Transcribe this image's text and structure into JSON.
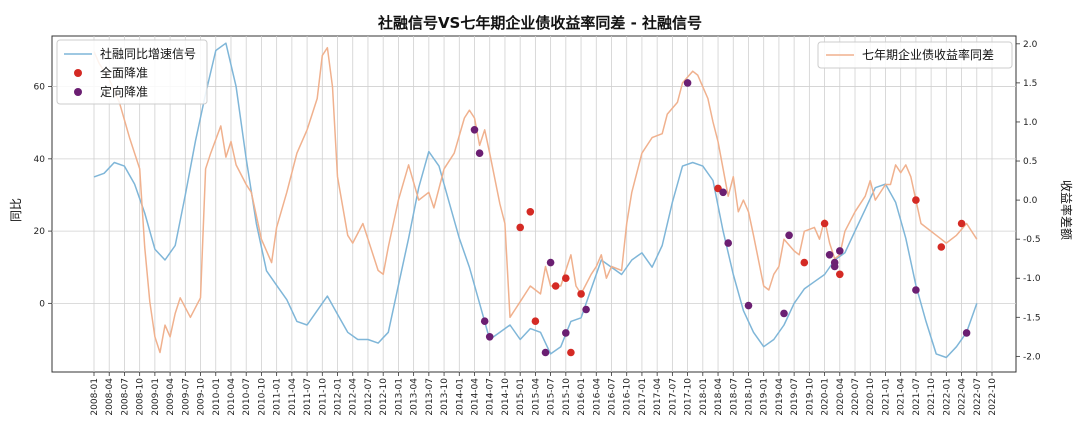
{
  "chart_data": {
    "type": "line",
    "title": "社融信号VS七年期企业债收益率同差 - 社融信号",
    "ylabel_left": "同比",
    "ylabel_right": "收益率差额",
    "ylim_left": [
      -19,
      74
    ],
    "ylim_right": [
      -2.2,
      2.1
    ],
    "yticks_left": [
      0,
      20,
      40,
      60
    ],
    "yticks_right": [
      2.0,
      1.5,
      1.0,
      0.5,
      0.0,
      -0.5,
      -1.0,
      -1.5,
      -2.0
    ],
    "x_start": "2008-01",
    "x_end": "2022-10",
    "x_ticks": [
      "2008-01",
      "2008-04",
      "2008-07",
      "2008-10",
      "2009-01",
      "2009-04",
      "2009-07",
      "2009-10",
      "2010-01",
      "2010-04",
      "2010-07",
      "2010-10",
      "2011-01",
      "2011-04",
      "2011-07",
      "2011-10",
      "2012-01",
      "2012-04",
      "2012-07",
      "2012-10",
      "2013-01",
      "2013-04",
      "2013-07",
      "2013-10",
      "2014-01",
      "2014-04",
      "2014-07",
      "2014-10",
      "2015-01",
      "2015-04",
      "2015-07",
      "2015-10",
      "2016-01",
      "2016-04",
      "2016-07",
      "2016-10",
      "2017-01",
      "2017-04",
      "2017-07",
      "2017-10",
      "2018-01",
      "2018-04",
      "2018-07",
      "2018-10",
      "2019-01",
      "2019-04",
      "2019-07",
      "2019-10",
      "2020-01",
      "2020-04",
      "2020-07",
      "2020-10",
      "2021-01",
      "2021-04",
      "2021-07",
      "2021-10",
      "2022-01",
      "2022-04",
      "2022-07",
      "2022-10"
    ],
    "grid": "vertical",
    "series": [
      {
        "name": "社融同比增速信号",
        "axis": "left",
        "color": "#7fb6d8",
        "points": [
          [
            "2008-01",
            35
          ],
          [
            "2008-03",
            36
          ],
          [
            "2008-05",
            39
          ],
          [
            "2008-07",
            38
          ],
          [
            "2008-09",
            33
          ],
          [
            "2008-11",
            25
          ],
          [
            "2009-01",
            15
          ],
          [
            "2009-03",
            12
          ],
          [
            "2009-05",
            16
          ],
          [
            "2009-07",
            30
          ],
          [
            "2009-09",
            45
          ],
          [
            "2009-11",
            58
          ],
          [
            "2010-01",
            70
          ],
          [
            "2010-03",
            72
          ],
          [
            "2010-05",
            60
          ],
          [
            "2010-07",
            40
          ],
          [
            "2010-09",
            22
          ],
          [
            "2010-11",
            9
          ],
          [
            "2011-01",
            5
          ],
          [
            "2011-03",
            1
          ],
          [
            "2011-05",
            -5
          ],
          [
            "2011-07",
            -6
          ],
          [
            "2011-09",
            -2
          ],
          [
            "2011-11",
            2
          ],
          [
            "2012-01",
            -3
          ],
          [
            "2012-03",
            -8
          ],
          [
            "2012-05",
            -10
          ],
          [
            "2012-07",
            -10
          ],
          [
            "2012-09",
            -11
          ],
          [
            "2012-11",
            -8
          ],
          [
            "2013-01",
            5
          ],
          [
            "2013-03",
            18
          ],
          [
            "2013-05",
            32
          ],
          [
            "2013-07",
            42
          ],
          [
            "2013-09",
            38
          ],
          [
            "2013-11",
            28
          ],
          [
            "2014-01",
            18
          ],
          [
            "2014-03",
            10
          ],
          [
            "2014-05",
            0
          ],
          [
            "2014-07",
            -10
          ],
          [
            "2014-09",
            -8
          ],
          [
            "2014-11",
            -6
          ],
          [
            "2015-01",
            -10
          ],
          [
            "2015-03",
            -7
          ],
          [
            "2015-05",
            -8
          ],
          [
            "2015-07",
            -14
          ],
          [
            "2015-09",
            -12
          ],
          [
            "2015-11",
            -5
          ],
          [
            "2016-01",
            -4
          ],
          [
            "2016-03",
            4
          ],
          [
            "2016-05",
            12
          ],
          [
            "2016-07",
            10
          ],
          [
            "2016-09",
            8
          ],
          [
            "2016-11",
            12
          ],
          [
            "2017-01",
            14
          ],
          [
            "2017-03",
            10
          ],
          [
            "2017-05",
            16
          ],
          [
            "2017-07",
            28
          ],
          [
            "2017-09",
            38
          ],
          [
            "2017-11",
            39
          ],
          [
            "2018-01",
            38
          ],
          [
            "2018-03",
            34
          ],
          [
            "2018-05",
            20
          ],
          [
            "2018-07",
            8
          ],
          [
            "2018-09",
            -2
          ],
          [
            "2018-11",
            -8
          ],
          [
            "2019-01",
            -12
          ],
          [
            "2019-03",
            -10
          ],
          [
            "2019-05",
            -6
          ],
          [
            "2019-07",
            0
          ],
          [
            "2019-09",
            4
          ],
          [
            "2019-11",
            6
          ],
          [
            "2020-01",
            8
          ],
          [
            "2020-03",
            12
          ],
          [
            "2020-05",
            14
          ],
          [
            "2020-07",
            20
          ],
          [
            "2020-09",
            26
          ],
          [
            "2020-11",
            32
          ],
          [
            "2021-01",
            33
          ],
          [
            "2021-03",
            28
          ],
          [
            "2021-05",
            18
          ],
          [
            "2021-07",
            5
          ],
          [
            "2021-09",
            -5
          ],
          [
            "2021-11",
            -14
          ],
          [
            "2022-01",
            -15
          ],
          [
            "2022-03",
            -12
          ],
          [
            "2022-05",
            -8
          ],
          [
            "2022-07",
            0
          ]
        ]
      },
      {
        "name": "七年期企业债收益率同差",
        "axis": "right",
        "color": "#f0b18e",
        "points": [
          [
            "2008-01",
            1.9
          ],
          [
            "2008-02",
            1.75
          ],
          [
            "2008-04",
            1.55
          ],
          [
            "2008-06",
            1.25
          ],
          [
            "2008-08",
            0.8
          ],
          [
            "2008-10",
            0.4
          ],
          [
            "2008-11",
            -0.6
          ],
          [
            "2008-12",
            -1.3
          ],
          [
            "2009-01",
            -1.75
          ],
          [
            "2009-02",
            -1.95
          ],
          [
            "2009-03",
            -1.6
          ],
          [
            "2009-04",
            -1.75
          ],
          [
            "2009-05",
            -1.45
          ],
          [
            "2009-06",
            -1.25
          ],
          [
            "2009-08",
            -1.5
          ],
          [
            "2009-10",
            -1.25
          ],
          [
            "2009-11",
            0.4
          ],
          [
            "2009-12",
            0.6
          ],
          [
            "2010-02",
            0.95
          ],
          [
            "2010-03",
            0.55
          ],
          [
            "2010-04",
            0.75
          ],
          [
            "2010-05",
            0.45
          ],
          [
            "2010-07",
            0.2
          ],
          [
            "2010-08",
            0.1
          ],
          [
            "2010-10",
            -0.5
          ],
          [
            "2010-12",
            -0.8
          ],
          [
            "2011-01",
            -0.35
          ],
          [
            "2011-03",
            0.1
          ],
          [
            "2011-05",
            0.6
          ],
          [
            "2011-07",
            0.9
          ],
          [
            "2011-09",
            1.3
          ],
          [
            "2011-10",
            1.85
          ],
          [
            "2011-11",
            1.95
          ],
          [
            "2011-12",
            1.45
          ],
          [
            "2012-01",
            0.3
          ],
          [
            "2012-03",
            -0.45
          ],
          [
            "2012-04",
            -0.55
          ],
          [
            "2012-06",
            -0.3
          ],
          [
            "2012-07",
            -0.5
          ],
          [
            "2012-09",
            -0.9
          ],
          [
            "2012-10",
            -0.95
          ],
          [
            "2012-11",
            -0.6
          ],
          [
            "2013-01",
            0.0
          ],
          [
            "2013-03",
            0.45
          ],
          [
            "2013-05",
            0.0
          ],
          [
            "2013-07",
            0.1
          ],
          [
            "2013-08",
            -0.1
          ],
          [
            "2013-10",
            0.4
          ],
          [
            "2013-12",
            0.6
          ],
          [
            "2014-02",
            1.05
          ],
          [
            "2014-03",
            1.15
          ],
          [
            "2014-04",
            1.05
          ],
          [
            "2014-05",
            0.7
          ],
          [
            "2014-06",
            0.9
          ],
          [
            "2014-07",
            0.6
          ],
          [
            "2014-09",
            -0.05
          ],
          [
            "2014-10",
            -0.3
          ],
          [
            "2014-11",
            -1.5
          ],
          [
            "2014-12",
            -1.4
          ],
          [
            "2015-01",
            -1.3
          ],
          [
            "2015-03",
            -1.1
          ],
          [
            "2015-05",
            -1.2
          ],
          [
            "2015-06",
            -0.85
          ],
          [
            "2015-07",
            -1.1
          ],
          [
            "2015-09",
            -1.1
          ],
          [
            "2015-10",
            -0.9
          ],
          [
            "2015-11",
            -0.7
          ],
          [
            "2015-12",
            -1.1
          ],
          [
            "2016-01",
            -1.2
          ],
          [
            "2016-03",
            -0.95
          ],
          [
            "2016-04",
            -0.85
          ],
          [
            "2016-05",
            -0.7
          ],
          [
            "2016-06",
            -1.0
          ],
          [
            "2016-07",
            -0.85
          ],
          [
            "2016-09",
            -0.9
          ],
          [
            "2016-10",
            -0.3
          ],
          [
            "2016-11",
            0.1
          ],
          [
            "2017-01",
            0.6
          ],
          [
            "2017-03",
            0.8
          ],
          [
            "2017-05",
            0.85
          ],
          [
            "2017-06",
            1.1
          ],
          [
            "2017-08",
            1.25
          ],
          [
            "2017-09",
            1.5
          ],
          [
            "2017-11",
            1.65
          ],
          [
            "2017-12",
            1.6
          ],
          [
            "2018-01",
            1.45
          ],
          [
            "2018-02",
            1.3
          ],
          [
            "2018-03",
            1.0
          ],
          [
            "2018-04",
            0.75
          ],
          [
            "2018-05",
            0.4
          ],
          [
            "2018-06",
            0.05
          ],
          [
            "2018-07",
            0.3
          ],
          [
            "2018-08",
            -0.15
          ],
          [
            "2018-09",
            0.0
          ],
          [
            "2018-10",
            -0.15
          ],
          [
            "2018-11",
            -0.45
          ],
          [
            "2019-01",
            -1.1
          ],
          [
            "2019-02",
            -1.15
          ],
          [
            "2019-03",
            -0.95
          ],
          [
            "2019-04",
            -0.85
          ],
          [
            "2019-05",
            -0.5
          ],
          [
            "2019-07",
            -0.65
          ],
          [
            "2019-08",
            -0.7
          ],
          [
            "2019-09",
            -0.4
          ],
          [
            "2019-11",
            -0.35
          ],
          [
            "2019-12",
            -0.5
          ],
          [
            "2020-01",
            -0.25
          ],
          [
            "2020-02",
            -0.55
          ],
          [
            "2020-03",
            -0.75
          ],
          [
            "2020-04",
            -0.7
          ],
          [
            "2020-05",
            -0.4
          ],
          [
            "2020-07",
            -0.15
          ],
          [
            "2020-09",
            0.05
          ],
          [
            "2020-10",
            0.25
          ],
          [
            "2020-11",
            0.0
          ],
          [
            "2021-01",
            0.2
          ],
          [
            "2021-02",
            0.2
          ],
          [
            "2021-03",
            0.45
          ],
          [
            "2021-04",
            0.35
          ],
          [
            "2021-05",
            0.45
          ],
          [
            "2021-06",
            0.3
          ],
          [
            "2021-07",
            0.0
          ],
          [
            "2021-08",
            -0.3
          ],
          [
            "2021-10",
            -0.4
          ],
          [
            "2021-12",
            -0.5
          ],
          [
            "2022-01",
            -0.55
          ],
          [
            "2022-03",
            -0.45
          ],
          [
            "2022-05",
            -0.3
          ],
          [
            "2022-07",
            -0.5
          ]
        ]
      }
    ],
    "markers": [
      {
        "name": "全面降准",
        "color": "#d42a24",
        "points": [
          [
            "2015-01",
            -0.35
          ],
          [
            "2015-03",
            -0.15
          ],
          [
            "2015-04",
            -1.55
          ],
          [
            "2015-08",
            -1.1
          ],
          [
            "2015-10",
            -1.0
          ],
          [
            "2015-11",
            -1.95
          ],
          [
            "2016-01",
            -1.2
          ],
          [
            "2018-04",
            0.15
          ],
          [
            "2019-09",
            -0.8
          ],
          [
            "2020-01",
            -0.3
          ],
          [
            "2020-04",
            -0.95
          ],
          [
            "2021-07",
            0.0
          ],
          [
            "2021-12",
            -0.6
          ],
          [
            "2022-04",
            -0.3
          ]
        ]
      },
      {
        "name": "定向降准",
        "color": "#6b1f72",
        "points": [
          [
            "2014-04",
            0.9
          ],
          [
            "2014-05",
            0.6
          ],
          [
            "2014-06",
            -1.55
          ],
          [
            "2014-07",
            -1.75
          ],
          [
            "2015-07",
            -0.8
          ],
          [
            "2015-06",
            -1.95
          ],
          [
            "2015-10",
            -1.7
          ],
          [
            "2016-02",
            -1.4
          ],
          [
            "2017-10",
            1.5
          ],
          [
            "2018-05",
            0.1
          ],
          [
            "2018-06",
            -0.55
          ],
          [
            "2018-10",
            -1.35
          ],
          [
            "2019-06",
            -0.45
          ],
          [
            "2019-05",
            -1.45
          ],
          [
            "2020-02",
            -0.7
          ],
          [
            "2020-03",
            -0.8
          ],
          [
            "2020-04",
            -0.65
          ],
          [
            "2020-03",
            -0.85
          ],
          [
            "2021-07",
            -1.15
          ],
          [
            "2022-05",
            -1.7
          ]
        ]
      }
    ],
    "legend_left": [
      "社融同比增速信号",
      "全面降准",
      "定向降准"
    ],
    "legend_right": [
      "七年期企业债收益率同差"
    ]
  }
}
